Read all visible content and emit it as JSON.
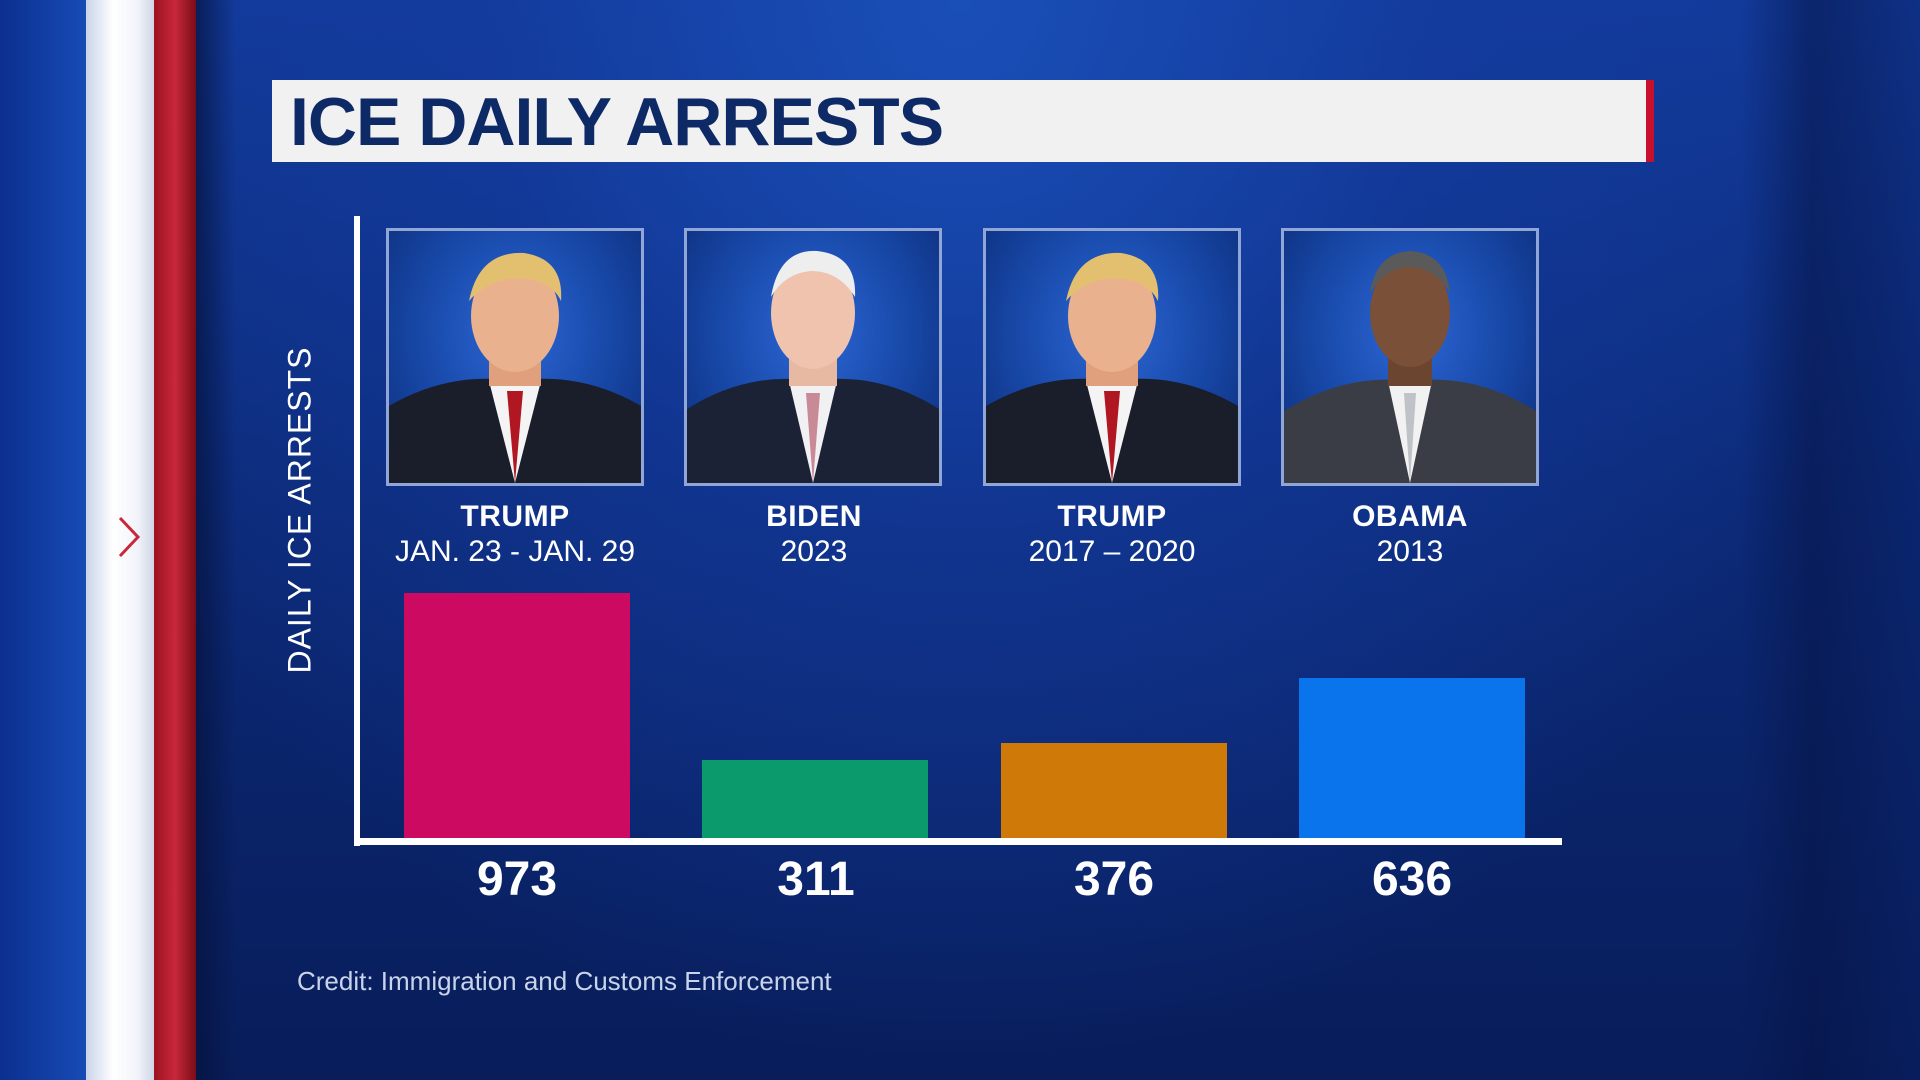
{
  "title": "ICE DAILY ARRESTS",
  "y_axis_label": "DAILY ICE ARRESTS",
  "credit": "Credit: Immigration and Customs Enforcement",
  "chart_data": {
    "type": "bar",
    "title": "ICE DAILY ARRESTS",
    "ylabel": "DAILY ICE ARRESTS",
    "xlabel": "",
    "ylim": [
      0,
      1000
    ],
    "categories": [
      {
        "name": "TRUMP",
        "period": "JAN. 23 - JAN. 29"
      },
      {
        "name": "BIDEN",
        "period": "2023"
      },
      {
        "name": "TRUMP",
        "period": "2017 – 2020"
      },
      {
        "name": "OBAMA",
        "period": "2013"
      }
    ],
    "values": [
      973,
      311,
      376,
      636
    ],
    "value_labels": [
      "973",
      "311",
      "376",
      "636"
    ],
    "colors": [
      "#cc0a62",
      "#0a9a6c",
      "#cf7a08",
      "#0a74ec"
    ]
  },
  "decoration_colors": {
    "accent_red": "#c8102e",
    "title_text": "#0e2a66"
  }
}
